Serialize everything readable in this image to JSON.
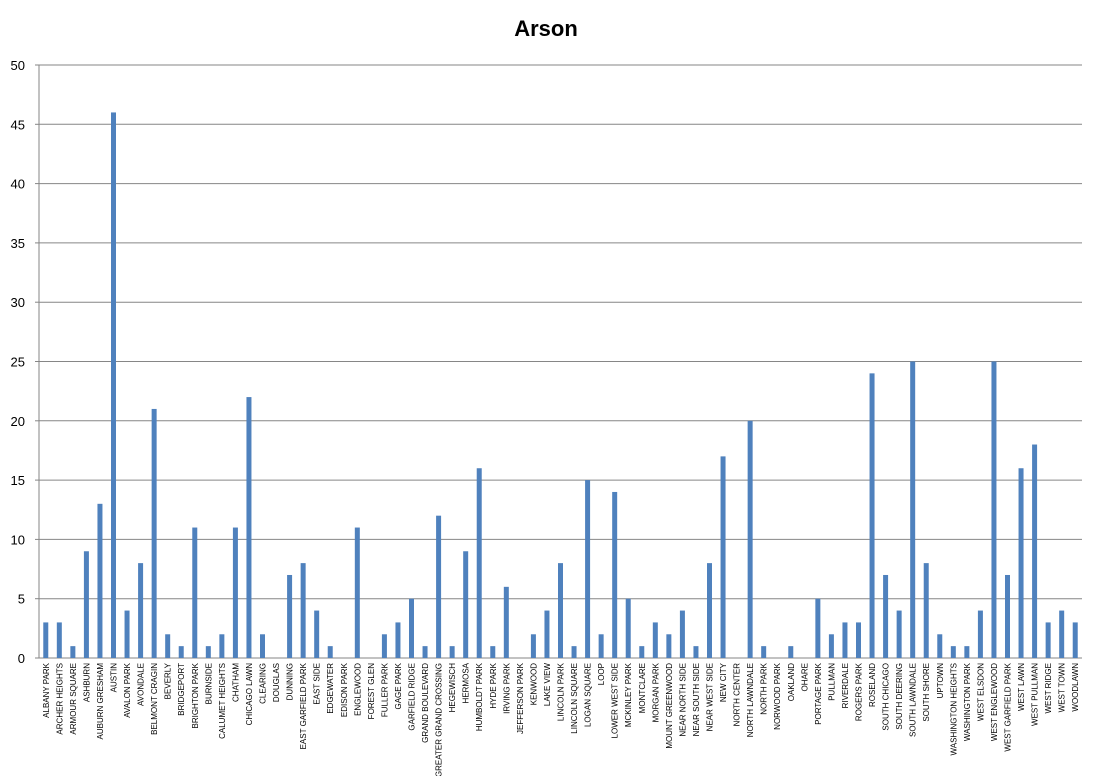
{
  "chart_data": {
    "type": "bar",
    "title": "Arson",
    "xlabel": "",
    "ylabel": "",
    "ylim": [
      0,
      50
    ],
    "yticks": [
      "0",
      "5",
      "10",
      "15",
      "20",
      "25",
      "30",
      "35",
      "40",
      "45",
      "50"
    ],
    "grid": true,
    "legend": "none",
    "colors": {
      "bar": "#4f81bd",
      "grid": "#868686",
      "axis": "#868686"
    },
    "categories": [
      "ALBANY PARK",
      "ARCHER HEIGHTS",
      "ARMOUR SQUARE",
      "ASHBURN",
      "AUBURN GRESHAM",
      "AUSTIN",
      "AVALON PARK",
      "AVONDALE",
      "BELMONT CRAGIN",
      "BEVERLY",
      "BRIDGEPORT",
      "BRIGHTON PARK",
      "BURNSIDE",
      "CALUMET HEIGHTS",
      "CHATHAM",
      "CHICAGO LAWN",
      "CLEARING",
      "DOUGLAS",
      "DUNNING",
      "EAST GARFIELD PARK",
      "EAST SIDE",
      "EDGEWATER",
      "EDISON PARK",
      "ENGLEWOOD",
      "FOREST GLEN",
      "FULLER PARK",
      "GAGE PARK",
      "GARFIELD RIDGE",
      "GRAND BOULEVARD",
      "GREATER GRAND CROSSING",
      "HEGEWISCH",
      "HERMOSA",
      "HUMBOLDT PARK",
      "HYDE PARK",
      "IRVING PARK",
      "JEFFERSON PARK",
      "KENWOOD",
      "LAKE VIEW",
      "LINCOLN PARK",
      "LINCOLN SQUARE",
      "LOGAN SQUARE",
      "LOOP",
      "LOWER WEST SIDE",
      "MCKINLEY PARK",
      "MONTCLARE",
      "MORGAN PARK",
      "MOUNT GREENWOOD",
      "NEAR NORTH SIDE",
      "NEAR SOUTH SIDE",
      "NEAR WEST SIDE",
      "NEW CITY",
      "NORTH CENTER",
      "NORTH LAWNDALE",
      "NORTH PARK",
      "NORWOOD PARK",
      "OAKLAND",
      "OHARE",
      "PORTAGE PARK",
      "PULLMAN",
      "RIVERDALE",
      "ROGERS PARK",
      "ROSELAND",
      "SOUTH CHICAGO",
      "SOUTH DEERING",
      "SOUTH LAWNDALE",
      "SOUTH SHORE",
      "UPTOWN",
      "WASHINGTON HEIGHTS",
      "WASHINGTON PARK",
      "WEST ELSDON",
      "WEST ENGLEWOOD",
      "WEST GARFIELD PARK",
      "WEST LAWN",
      "WEST PULLMAN",
      "WEST RIDGE",
      "WEST TOWN",
      "WOODLAWN"
    ],
    "series": [
      {
        "values": [
          3,
          3,
          1,
          9,
          13,
          46,
          4,
          8,
          21,
          2,
          1,
          11,
          1,
          2,
          11,
          22,
          2,
          0,
          7,
          8,
          4,
          1,
          0,
          11,
          0,
          2,
          3,
          5,
          1,
          12,
          1,
          9,
          16,
          1,
          6,
          0,
          2,
          4,
          8,
          1,
          15,
          2,
          14,
          5,
          1,
          3,
          2,
          4,
          1,
          8,
          17,
          0,
          20,
          1,
          0,
          1,
          0,
          5,
          2,
          3,
          3,
          24,
          7,
          4,
          25,
          8,
          2,
          1,
          1,
          4,
          25,
          7,
          16,
          18,
          3,
          4,
          3
        ]
      }
    ]
  }
}
